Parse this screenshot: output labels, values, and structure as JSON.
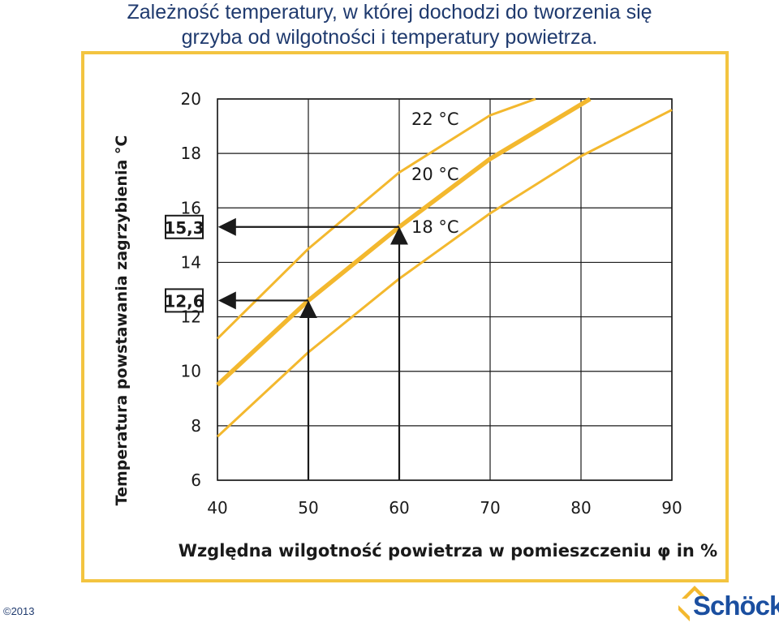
{
  "title_line1": "Zależność temperatury, w której dochodzi do tworzenia się",
  "title_line2": "grzyba od wilgotności i temperatury powietrza.",
  "copyright": "©2013",
  "logo_text": "Schöck",
  "colors": {
    "title": "#1f3a6e",
    "frame": "#f3c440",
    "curve": "#f3b82e",
    "grid": "#1a1a1a",
    "logo_blue": "#1b4fa0",
    "logo_orange": "#f3b82e"
  },
  "chart_data": {
    "type": "line",
    "title": "",
    "xlabel": "Względna wilgotność powietrza w pomieszczeniu φ in %",
    "ylabel": "Temperatura powstawania zagrzybienia °C",
    "xlim": [
      40,
      90
    ],
    "ylim": [
      6,
      20
    ],
    "x_ticks": [
      "40",
      "50",
      "60",
      "70",
      "80",
      "90"
    ],
    "y_ticks": [
      "6",
      "8",
      "10",
      "12",
      "14",
      "16",
      "18",
      "20"
    ],
    "grid": true,
    "series": [
      {
        "name": "22 °C",
        "x": [
          40,
          50,
          60,
          70,
          75
        ],
        "y": [
          11.2,
          14.5,
          17.3,
          19.4,
          20.0
        ]
      },
      {
        "name": "20 °C",
        "x": [
          40,
          50,
          60,
          70,
          80,
          81
        ],
        "y": [
          9.5,
          12.6,
          15.3,
          17.8,
          19.8,
          20.0
        ]
      },
      {
        "name": "18 °C",
        "x": [
          40,
          50,
          60,
          70,
          80,
          90
        ],
        "y": [
          7.6,
          10.7,
          13.4,
          15.8,
          17.9,
          19.6
        ]
      }
    ],
    "annotations": [
      {
        "label": "15,3",
        "x": 60,
        "y": 15.3
      },
      {
        "label": "12,6",
        "x": 50,
        "y": 12.6
      }
    ]
  }
}
